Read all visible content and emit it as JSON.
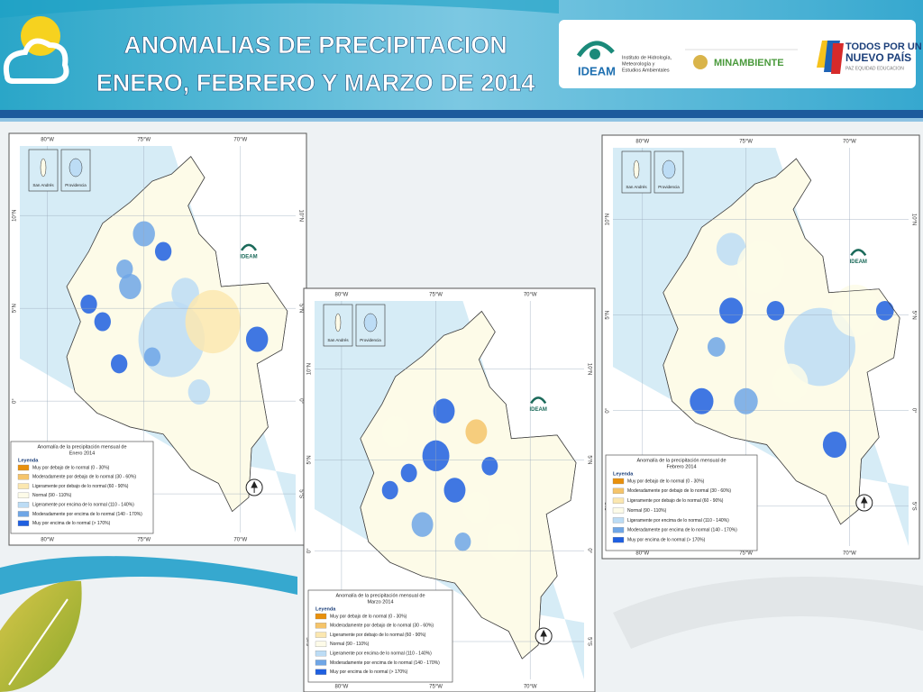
{
  "header": {
    "title": [
      "ANOMALIAS DE PRECIPITACION",
      "ENERO, FEBRERO Y MARZO DE 2014"
    ],
    "logos": {
      "ideam": {
        "name": "IDEAM",
        "subtitle": [
          "Instituto de Hidrología,",
          "Meteorología y",
          "Estudios Ambientales"
        ]
      },
      "minambiente": "MINAMBIENTE",
      "todos": {
        "line1": "TODOS POR UN",
        "line2": "NUEVO PAÍS",
        "line3": "PAZ  EQUIDAD  EDUCACION"
      }
    }
  },
  "maps": [
    {
      "lon_labels": [
        "80°W",
        "75°W",
        "70°W"
      ],
      "lat_labels": [
        "10°N",
        "5°N",
        "0°",
        "5°S"
      ],
      "insets": [
        "San Andrés",
        "Providencia"
      ],
      "logo": "IDEAM",
      "legend": {
        "title": [
          "Anomalía de la precipitación mensual de",
          "Enero 2014"
        ],
        "heading": "Leyenda",
        "items": [
          {
            "label": "Muy por debajo de lo normal (0 - 30%)",
            "color": "#e8900c"
          },
          {
            "label": "Moderadamente por debajo de lo normal (30 - 60%)",
            "color": "#f5c46a"
          },
          {
            "label": "Ligeramente por debajo de lo normal (60 - 90%)",
            "color": "#fbe7b0"
          },
          {
            "label": "Normal (90 - 110%)",
            "color": "#fdfbe8"
          },
          {
            "label": "Ligeramente por encima de lo normal (110 - 140%)",
            "color": "#bcdcf5"
          },
          {
            "label": "Moderadamente por encima de lo normal (140 - 170%)",
            "color": "#6fa6e6"
          },
          {
            "label": "Muy por encima de lo normal (> 170%)",
            "color": "#1f5fe0"
          }
        ]
      }
    },
    {
      "lon_labels": [
        "80°W",
        "75°W",
        "70°W"
      ],
      "lat_labels": [
        "10°N",
        "5°N",
        "0°",
        "5°S"
      ],
      "insets": [
        "San Andrés",
        "Providencia"
      ],
      "logo": "IDEAM",
      "legend": {
        "title": [
          "Anomalía de la precipitación mensual de",
          "Febrero 2014"
        ],
        "heading": "Leyenda",
        "items": [
          {
            "label": "Muy por debajo de lo normal (0 - 30%)",
            "color": "#e8900c"
          },
          {
            "label": "Moderadamente por debajo de lo normal (30 - 60%)",
            "color": "#f5c46a"
          },
          {
            "label": "Ligeramente por debajo de lo normal (60 - 90%)",
            "color": "#fbe7b0"
          },
          {
            "label": "Normal (90 - 110%)",
            "color": "#fdfbe8"
          },
          {
            "label": "Ligeramente por encima de lo normal (110 - 140%)",
            "color": "#bcdcf5"
          },
          {
            "label": "Moderadamente por encima de lo normal (140 - 170%)",
            "color": "#6fa6e6"
          },
          {
            "label": "Muy por encima de lo normal (> 170%)",
            "color": "#1f5fe0"
          }
        ]
      }
    },
    {
      "lon_labels": [
        "80°W",
        "75°W",
        "70°W"
      ],
      "lat_labels": [
        "10°N",
        "5°N",
        "0°",
        "5°S"
      ],
      "insets": [
        "San Andrés",
        "Providencia"
      ],
      "logo": "IDEAM",
      "legend": {
        "title": [
          "Anomalía de la precipitación mensual de",
          "Marzo 2014"
        ],
        "heading": "Leyenda",
        "items": [
          {
            "label": "Muy por debajo de lo normal (0 - 30%)",
            "color": "#e8900c"
          },
          {
            "label": "Moderadamente por debajo de lo normal (30 - 60%)",
            "color": "#f5c46a"
          },
          {
            "label": "Ligeramente por debajo de lo normal (60 - 90%)",
            "color": "#fbe7b0"
          },
          {
            "label": "Normal (90 - 110%)",
            "color": "#fdfbe8"
          },
          {
            "label": "Ligeramente por encima de lo normal (110 - 140%)",
            "color": "#bcdcf5"
          },
          {
            "label": "Moderadamente por encima de lo normal (140 - 170%)",
            "color": "#6fa6e6"
          },
          {
            "label": "Muy por encima de lo normal (> 170%)",
            "color": "#1f5fe0"
          }
        ]
      }
    }
  ]
}
